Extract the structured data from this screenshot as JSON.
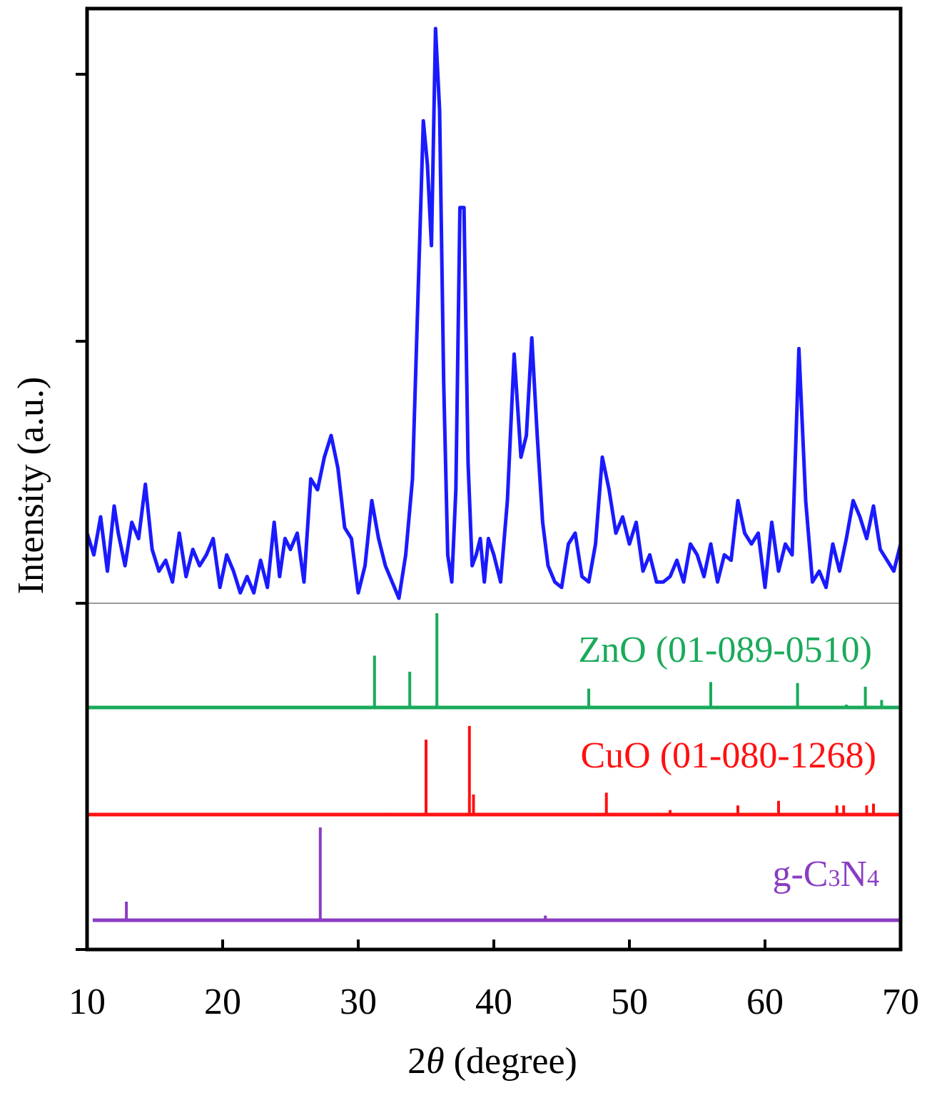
{
  "chart_data": {
    "type": "line",
    "title": "",
    "xlabel_prefix": "2",
    "xlabel_symbol": "θ",
    "xlabel_suffix": " (degree)",
    "ylabel": "Intensity (a.u.)",
    "xlim": [
      10,
      70
    ],
    "xticks": [
      10,
      20,
      30,
      40,
      50,
      60,
      70
    ],
    "grid": false,
    "series": [
      {
        "color": "#1a1aff",
        "x": [
          10,
          10.5,
          11,
          11.5,
          12,
          12.3,
          12.8,
          13.3,
          13.8,
          14.3,
          14.8,
          15.3,
          15.8,
          16.3,
          16.8,
          17.3,
          17.8,
          18.3,
          18.8,
          19.3,
          19.8,
          20.3,
          20.8,
          21.3,
          21.8,
          22.3,
          22.8,
          23.3,
          23.8,
          24.2,
          24.6,
          25,
          25.5,
          26,
          26.5,
          27,
          27.5,
          28,
          28.5,
          29,
          29.5,
          30,
          30.5,
          31,
          31.5,
          32,
          32.5,
          33,
          33.5,
          34,
          34.4,
          34.8,
          35.1,
          35.4,
          35.7,
          36,
          36.3,
          36.6,
          36.9,
          37.2,
          37.5,
          37.8,
          38.1,
          38.4,
          38.7,
          39,
          39.3,
          39.6,
          40,
          40.5,
          41,
          41.5,
          42,
          42.4,
          42.8,
          43.2,
          43.6,
          44,
          44.5,
          45,
          45.5,
          46,
          46.5,
          47,
          47.5,
          48,
          48.5,
          49,
          49.5,
          50,
          50.5,
          51,
          51.5,
          52,
          52.5,
          53,
          53.5,
          54,
          54.5,
          55,
          55.5,
          56,
          56.5,
          57,
          57.5,
          58,
          58.5,
          59,
          59.5,
          60,
          60.5,
          61,
          61.5,
          62,
          62.5,
          63,
          63.5,
          64,
          64.5,
          65,
          65.5,
          66,
          66.5,
          67,
          67.5,
          68,
          68.5,
          69,
          69.5,
          70
        ],
        "y": [
          12,
          8,
          15,
          5,
          17,
          12,
          6,
          14,
          11,
          21,
          9,
          5,
          7,
          3,
          12,
          4,
          9,
          6,
          8,
          11,
          2,
          8,
          5,
          1,
          4,
          1,
          7,
          2,
          14,
          4,
          11,
          9,
          12,
          3,
          22,
          20,
          26,
          30,
          24,
          13,
          11,
          1,
          6,
          18,
          11,
          6,
          3,
          0,
          8,
          22,
          55,
          88,
          80,
          65,
          105,
          90,
          40,
          8,
          3,
          20,
          72,
          72,
          25,
          6,
          8,
          11,
          3,
          11,
          8,
          3,
          18,
          45,
          26,
          30,
          48,
          30,
          14,
          6,
          3,
          2,
          10,
          12,
          4,
          3,
          10,
          26,
          20,
          12,
          15,
          10,
          14,
          5,
          8,
          3,
          3,
          4,
          7,
          3,
          10,
          8,
          4,
          10,
          3,
          8,
          7,
          18,
          12,
          10,
          12,
          2,
          14,
          5,
          10,
          8,
          46,
          18,
          3,
          5,
          2,
          10,
          5,
          11,
          18,
          15,
          11,
          17,
          9,
          7,
          5,
          10
        ]
      }
    ],
    "references": [
      {
        "name": "ZnO (01-089-0510)",
        "color": "#1aaa5a",
        "peaks_x": [
          31.2,
          33.8,
          35.8,
          47.0,
          56.0,
          62.4,
          66.0,
          67.4,
          68.6
        ],
        "peaks_rel": [
          55,
          38,
          100,
          20,
          27,
          26,
          3,
          22,
          8
        ]
      },
      {
        "name": "CuO (01-080-1268)",
        "color": "#ff1111",
        "peaks_x": [
          32.0,
          35.0,
          38.2,
          38.5,
          48.3,
          53.0,
          58.0,
          61.0,
          65.3,
          65.8,
          67.5,
          68.0
        ],
        "peaks_rel": [
          2,
          82,
          97,
          22,
          24,
          5,
          10,
          15,
          10,
          10,
          10,
          12
        ]
      },
      {
        "name_prefix": "g-C",
        "name_sub1": "3",
        "name_mid": "N",
        "name_sub2": "4",
        "color": "#8a3cc3",
        "peaks_x": [
          12.9,
          27.2,
          43.8
        ],
        "peaks_rel": [
          20,
          100,
          5
        ]
      }
    ]
  }
}
